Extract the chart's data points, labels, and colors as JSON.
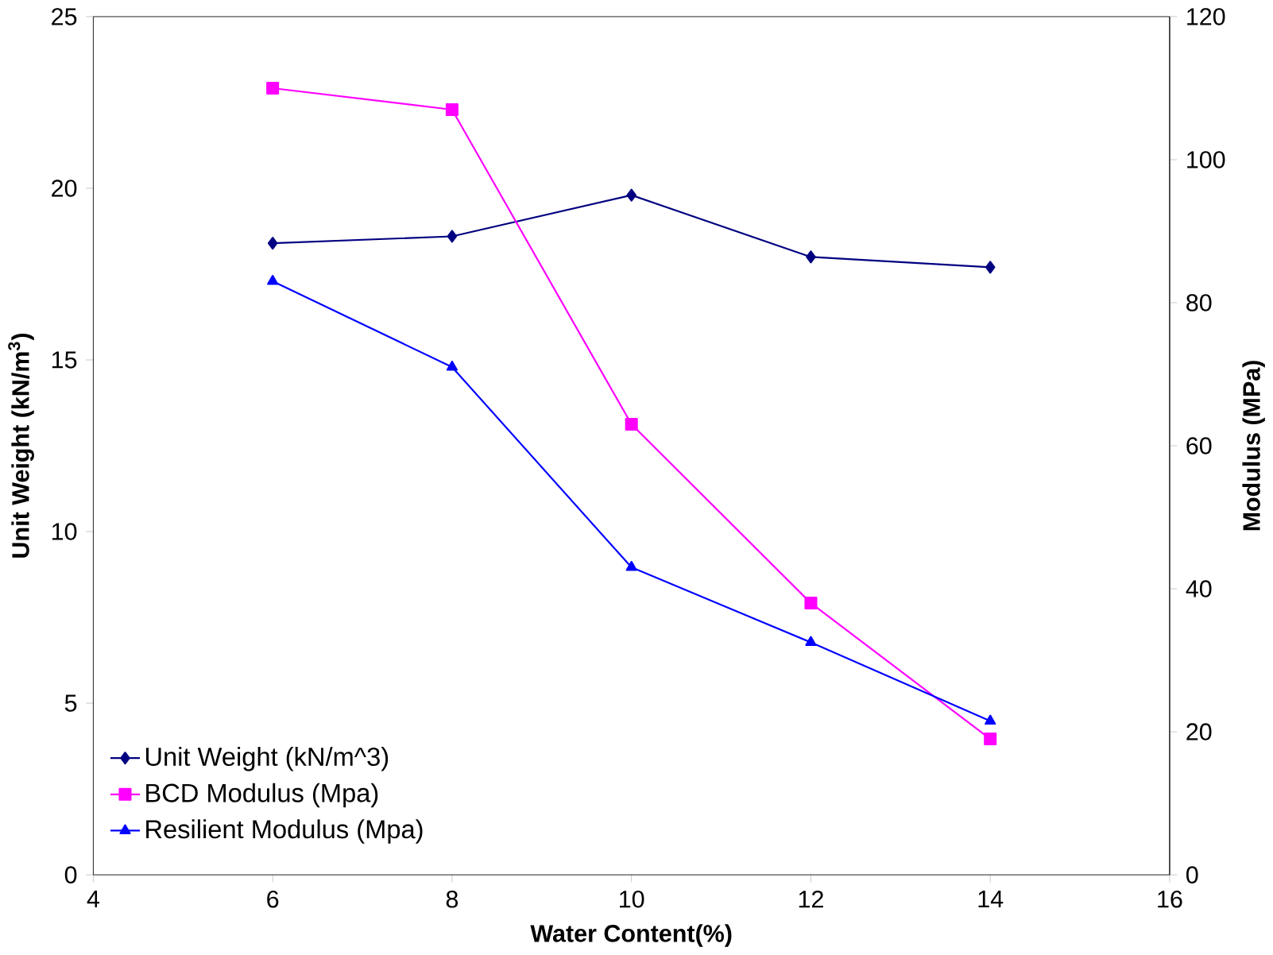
{
  "chart_data": {
    "type": "line",
    "xlabel": "Water Content(%)",
    "ylabel": "Unit Weight (kN/m$^{3}$)",
    "y2label": "Modulus (MPa)",
    "x": [
      6,
      8,
      10,
      12,
      14
    ],
    "xlim": [
      4,
      16
    ],
    "xticks": [
      4,
      6,
      8,
      10,
      12,
      14,
      16
    ],
    "ylim": [
      0,
      25
    ],
    "yticks": [
      0,
      5,
      10,
      15,
      20,
      25
    ],
    "y2lim": [
      0,
      120
    ],
    "y2ticks": [
      0,
      20,
      40,
      60,
      80,
      100,
      120
    ],
    "legend": "bottom left",
    "grid": false,
    "line_style": "solid",
    "series": [
      {
        "name": "Unit Weight (kN/m^3)",
        "color": "#000080",
        "marker": "diamond",
        "values": [
          18.4,
          18.6,
          19.8,
          18.0,
          17.7
        ]
      },
      {
        "name": "BCD Modulus (Mpa)",
        "color": "#ff00ff",
        "marker": "square",
        "axis": "y2",
        "values": [
          110,
          107,
          63,
          38,
          19
        ]
      },
      {
        "name": "Resilient Modulus (Mpa)",
        "color": "#0000ff",
        "marker": "triangle",
        "axis": "y2",
        "values": [
          83,
          71,
          43,
          32.5,
          21.5
        ]
      }
    ]
  }
}
